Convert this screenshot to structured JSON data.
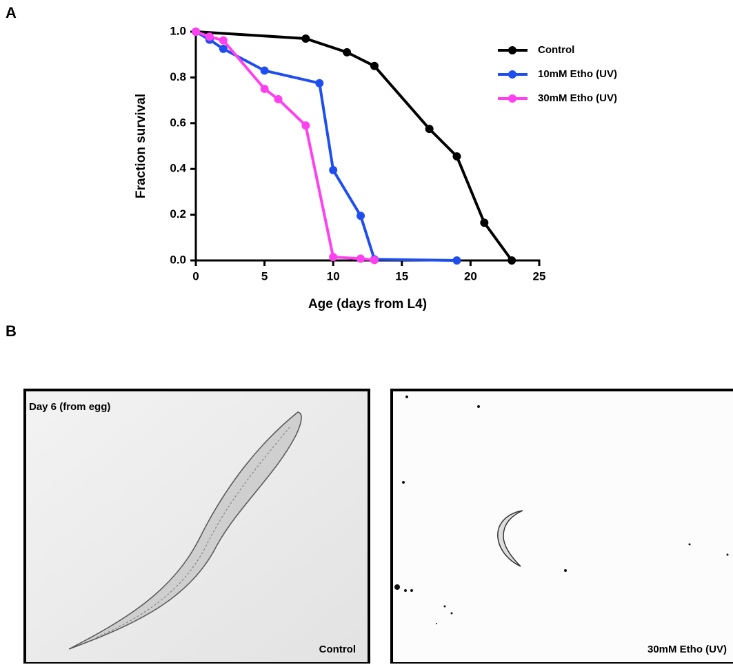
{
  "panels": {
    "a": "A",
    "b": "B"
  },
  "chart_data": {
    "type": "line",
    "xlabel": "Age (days from L4)",
    "ylabel": "Fraction survival",
    "xlim": [
      0,
      25
    ],
    "xticks": [
      0,
      5,
      10,
      15,
      20,
      25
    ],
    "ylim": [
      0,
      1
    ],
    "yticks": [
      {
        "value": 0,
        "label": "0.0"
      },
      {
        "value": 0.2,
        "label": "0.2"
      },
      {
        "value": 0.4,
        "label": "0.4"
      },
      {
        "value": 0.6,
        "label": "0.6"
      },
      {
        "value": 0.8,
        "label": "0.8"
      },
      {
        "value": 1,
        "label": "1.0"
      }
    ],
    "legend": "upper right",
    "series": [
      {
        "name": "Control",
        "color": "#000000",
        "x": [
          0,
          8,
          11,
          13,
          17,
          19,
          21,
          23
        ],
        "values": [
          1.0,
          0.97,
          0.91,
          0.85,
          0.575,
          0.455,
          0.165,
          0.0
        ]
      },
      {
        "name": "10mM Etho (UV)",
        "color": "#1f4ef0",
        "x": [
          0,
          1,
          2,
          5,
          9,
          10,
          12,
          13,
          19
        ],
        "values": [
          1.0,
          0.965,
          0.925,
          0.83,
          0.775,
          0.395,
          0.195,
          0.005,
          0.0
        ]
      },
      {
        "name": "30mM Etho (UV)",
        "color": "#ff40f0",
        "x": [
          0,
          1,
          2,
          5,
          6,
          8,
          10,
          12,
          13
        ],
        "values": [
          1.0,
          0.978,
          0.962,
          0.75,
          0.705,
          0.59,
          0.015,
          0.008,
          0.002
        ]
      }
    ]
  },
  "images": [
    {
      "top_label": "Day 6 (from egg)",
      "caption": "Control"
    },
    {
      "caption": "30mM Etho (UV)"
    }
  ]
}
